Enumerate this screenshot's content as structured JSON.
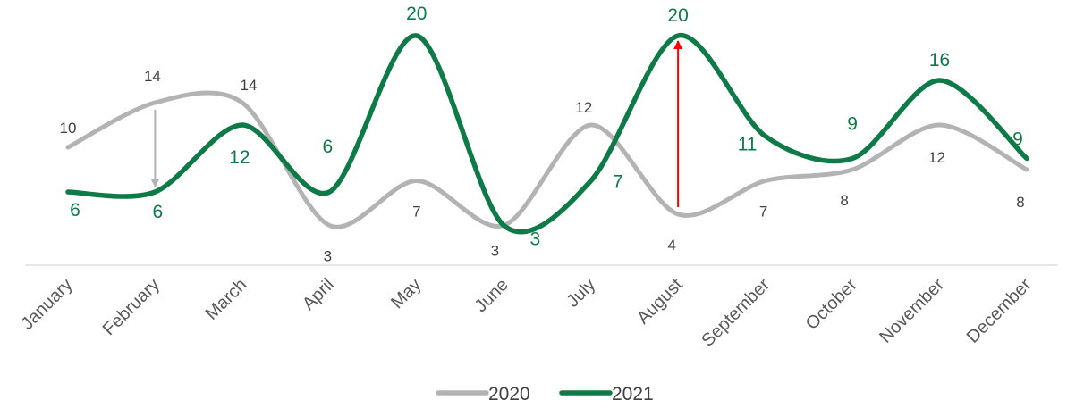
{
  "chart_data": {
    "type": "line",
    "smooth": true,
    "categories": [
      "January",
      "February",
      "March",
      "April",
      "May",
      "June",
      "July",
      "August",
      "September",
      "October",
      "November",
      "December"
    ],
    "series": [
      {
        "name": "2020",
        "color": "#b3b3b3",
        "values": [
          10,
          14,
          14,
          3,
          7,
          3,
          12,
          4,
          7,
          8,
          12,
          8
        ]
      },
      {
        "name": "2021",
        "color": "#0e7a47",
        "values": [
          6,
          6,
          12,
          6,
          20,
          3,
          7,
          20,
          11,
          9,
          16,
          9
        ]
      }
    ],
    "ylim": [
      0,
      22
    ],
    "grid": false,
    "legend": "bottom-center",
    "annotations": [
      {
        "type": "arrow",
        "category": "February",
        "from": 14,
        "to": 6,
        "color": "#b3b3b3"
      },
      {
        "type": "arrow",
        "category": "August",
        "from": 4,
        "to": 20,
        "color": "#ff0000"
      }
    ]
  }
}
